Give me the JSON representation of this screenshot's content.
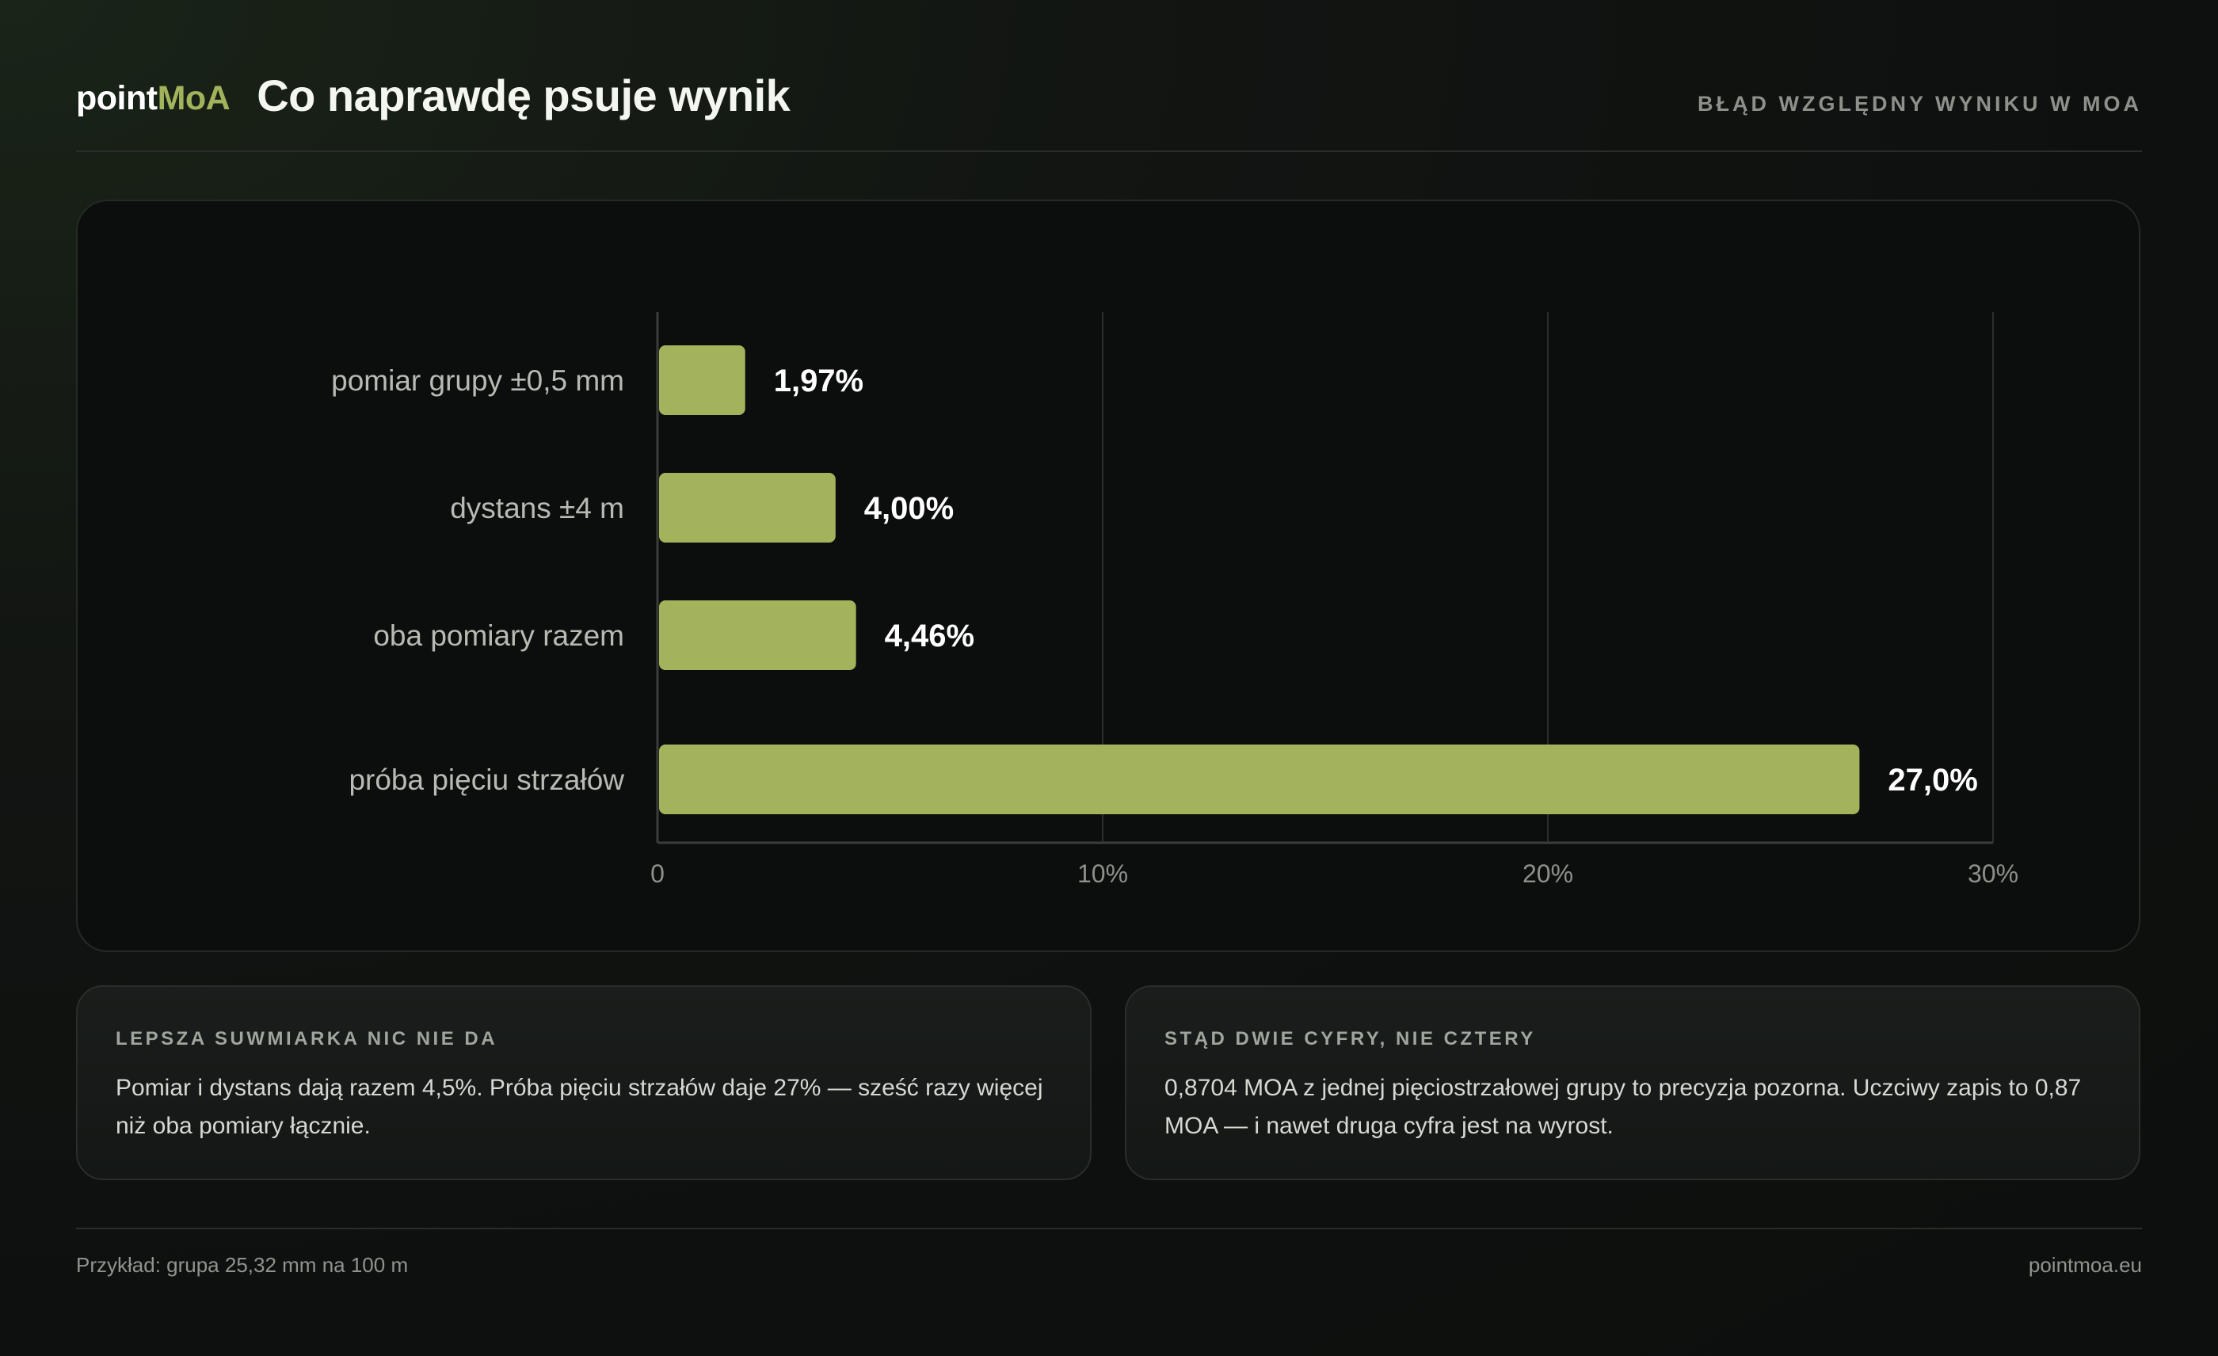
{
  "header": {
    "brand_part1": "point",
    "brand_part2": "MoA",
    "title": "Co naprawdę psuje wynik",
    "subtitle": "BŁĄD WZGLĘDNY WYNIKU W MOA"
  },
  "chart_data": {
    "type": "bar",
    "orientation": "horizontal",
    "title": "",
    "xlabel": "",
    "ylabel": "",
    "categories": [
      "pomiar grupy ±0,5 mm",
      "dystans ±4 m",
      "oba pomiary razem",
      "próba pięciu strzałów"
    ],
    "values": [
      1.97,
      4.0,
      4.46,
      27.0
    ],
    "value_labels": [
      "1,97%",
      "4,00%",
      "4,46%",
      "27,0%"
    ],
    "xlim": [
      0,
      30
    ],
    "ticks": [
      0,
      10,
      20,
      30
    ],
    "tick_labels": [
      "0",
      "10%",
      "20%",
      "30%"
    ],
    "grid": "vertical",
    "bar_color": "#a3b35c"
  },
  "notes": [
    {
      "title": "LEPSZA SUWMIARKA NIC NIE DA",
      "text": "Pomiar i dystans dają razem 4,5%. Próba pięciu strzałów daje 27% — sześć razy więcej niż oba pomiary łącznie."
    },
    {
      "title": "STĄD DWIE CYFRY, NIE CZTERY",
      "text": "0,8704 MOA z jednej pięciostrzałowej grupy to precyzja pozorna. Uczciwy zapis to 0,87 MOA — i nawet druga cyfra jest na wyrost."
    }
  ],
  "footer": {
    "example": "Przykład: grupa 25,32 mm na 100 m",
    "site": "pointmoa.eu"
  }
}
